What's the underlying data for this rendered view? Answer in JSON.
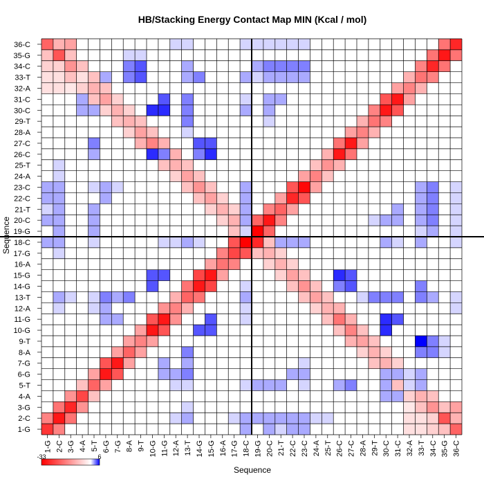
{
  "chart_data": {
    "type": "heatmap",
    "title": "HB/Stacking Energy Contact Map MIN (Kcal / mol)",
    "xlabel": "Sequence",
    "ylabel": "Sequence",
    "labels": [
      "1-G",
      "2-C",
      "3-G",
      "4-A",
      "5-T",
      "6-G",
      "7-G",
      "8-A",
      "9-T",
      "10-G",
      "11-G",
      "12-A",
      "13-T",
      "14-G",
      "15-G",
      "16-A",
      "17-G",
      "18-C",
      "19-G",
      "20-C",
      "21-T",
      "22-C",
      "23-C",
      "24-A",
      "25-T",
      "26-C",
      "27-C",
      "28-A",
      "29-T",
      "30-C",
      "31-C",
      "32-A",
      "33-T",
      "34-C",
      "35-G",
      "36-C"
    ],
    "x_tick_labels": [
      "1-G",
      "2-C",
      "3-G",
      "4-A",
      "5-T",
      "6-G",
      "7-G",
      "8-A",
      "9-T",
      "10-G",
      "11-G",
      "12-A",
      "13-T",
      "14-G",
      "15-G",
      "16-A",
      "17-G",
      "18-C",
      "19-G",
      "20-C",
      "21-T",
      "22-C",
      "23-C",
      "24-A",
      "25-T",
      "26-C",
      "27-C",
      "28-A",
      "29-T",
      "30-C",
      "31-C",
      "32-A",
      "33-T",
      "34-C",
      "35-G",
      "36-C"
    ],
    "y_tick_labels": [
      "36-C",
      "35-G",
      "34-C",
      "33-T",
      "32-A",
      "31-C",
      "30-C",
      "29-T",
      "28-A",
      "27-C",
      "26-C",
      "25-T",
      "24-A",
      "23-C",
      "22-C",
      "21-T",
      "20-C",
      "19-G",
      "18-C",
      "17-G",
      "16-A",
      "15-G",
      "14-G",
      "13-T",
      "12-A",
      "11-G",
      "10-G",
      "9-T",
      "8-A",
      "7-G",
      "6-G",
      "5-T",
      "4-A",
      "3-G",
      "2-C",
      "1-G"
    ],
    "colorbar": {
      "min_label": "-33",
      "max_label": "6",
      "min": -33,
      "max": 6
    },
    "colors": {
      "negative": "#ff0000",
      "zero": "#ffffff",
      "positive": "#0000ff",
      "grid": "#000000"
    },
    "divider_after_index": 18,
    "grid": true,
    "cells": [
      [
        1,
        1,
        -26
      ],
      [
        2,
        2,
        -30
      ],
      [
        3,
        3,
        -28
      ],
      [
        4,
        4,
        -24
      ],
      [
        5,
        5,
        -20
      ],
      [
        6,
        6,
        -30
      ],
      [
        7,
        7,
        -30
      ],
      [
        8,
        8,
        -20
      ],
      [
        9,
        9,
        -16
      ],
      [
        10,
        10,
        -30
      ],
      [
        11,
        11,
        -30
      ],
      [
        12,
        12,
        -16
      ],
      [
        13,
        13,
        -20
      ],
      [
        14,
        14,
        -30
      ],
      [
        15,
        15,
        -30
      ],
      [
        16,
        16,
        -18
      ],
      [
        17,
        17,
        -24
      ],
      [
        18,
        18,
        -33
      ],
      [
        19,
        19,
        -33
      ],
      [
        20,
        20,
        -30
      ],
      [
        21,
        21,
        -20
      ],
      [
        22,
        22,
        -28
      ],
      [
        23,
        23,
        -32
      ],
      [
        24,
        24,
        -16
      ],
      [
        25,
        25,
        -14
      ],
      [
        26,
        26,
        -30
      ],
      [
        27,
        27,
        -30
      ],
      [
        28,
        28,
        -16
      ],
      [
        29,
        29,
        -18
      ],
      [
        30,
        30,
        -30
      ],
      [
        31,
        31,
        -30
      ],
      [
        32,
        32,
        -16
      ],
      [
        33,
        33,
        -18
      ],
      [
        34,
        34,
        -28
      ],
      [
        35,
        35,
        -30
      ],
      [
        36,
        36,
        -28
      ],
      [
        1,
        2,
        -16
      ],
      [
        2,
        3,
        -18
      ],
      [
        3,
        4,
        -14
      ],
      [
        4,
        5,
        -8
      ],
      [
        5,
        6,
        -12
      ],
      [
        6,
        7,
        -22
      ],
      [
        7,
        8,
        -12
      ],
      [
        8,
        9,
        -12
      ],
      [
        9,
        10,
        -12
      ],
      [
        10,
        11,
        -22
      ],
      [
        11,
        12,
        -14
      ],
      [
        12,
        13,
        -10
      ],
      [
        13,
        14,
        -18
      ],
      [
        14,
        15,
        -24
      ],
      [
        15,
        16,
        -12
      ],
      [
        16,
        17,
        -16
      ],
      [
        17,
        18,
        -22
      ],
      [
        18,
        19,
        -28
      ],
      [
        19,
        20,
        -20
      ],
      [
        20,
        21,
        -16
      ],
      [
        21,
        22,
        -12
      ],
      [
        22,
        23,
        -22
      ],
      [
        23,
        24,
        -12
      ],
      [
        24,
        25,
        -8
      ],
      [
        25,
        26,
        -10
      ],
      [
        26,
        27,
        -18
      ],
      [
        27,
        28,
        -12
      ],
      [
        28,
        29,
        -10
      ],
      [
        29,
        30,
        -16
      ],
      [
        30,
        31,
        -22
      ],
      [
        31,
        32,
        -12
      ],
      [
        32,
        33,
        -10
      ],
      [
        33,
        34,
        -16
      ],
      [
        34,
        35,
        -18
      ],
      [
        35,
        36,
        -18
      ],
      [
        1,
        36,
        -20
      ],
      [
        2,
        35,
        -22
      ],
      [
        3,
        34,
        -14
      ],
      [
        4,
        33,
        -10
      ],
      [
        5,
        32,
        -10
      ],
      [
        6,
        31,
        -12
      ],
      [
        7,
        30,
        -10
      ],
      [
        8,
        29,
        -10
      ],
      [
        9,
        28,
        -12
      ],
      [
        10,
        27,
        -16
      ],
      [
        11,
        26,
        -18
      ],
      [
        12,
        25,
        -10
      ],
      [
        13,
        24,
        -12
      ],
      [
        14,
        23,
        -14
      ],
      [
        15,
        22,
        -12
      ],
      [
        16,
        21,
        -10
      ],
      [
        17,
        20,
        -10
      ],
      [
        18,
        19,
        -12
      ],
      [
        2,
        36,
        -10
      ],
      [
        3,
        36,
        -12
      ],
      [
        1,
        35,
        -8
      ],
      [
        1,
        34,
        -6
      ],
      [
        3,
        35,
        -8
      ],
      [
        2,
        34,
        -6
      ],
      [
        4,
        34,
        -8
      ],
      [
        3,
        33,
        -8
      ],
      [
        5,
        33,
        -8
      ],
      [
        4,
        32,
        -6
      ],
      [
        6,
        32,
        -8
      ],
      [
        5,
        31,
        -8
      ],
      [
        7,
        31,
        -6
      ],
      [
        6,
        30,
        -6
      ],
      [
        8,
        30,
        -6
      ],
      [
        7,
        29,
        -8
      ],
      [
        9,
        29,
        -8
      ],
      [
        8,
        28,
        -6
      ],
      [
        10,
        28,
        -8
      ],
      [
        9,
        27,
        -10
      ],
      [
        11,
        27,
        -10
      ],
      [
        10,
        26,
        -8
      ],
      [
        12,
        26,
        -10
      ],
      [
        11,
        25,
        -8
      ],
      [
        13,
        25,
        -8
      ],
      [
        12,
        24,
        -6
      ],
      [
        14,
        24,
        -8
      ],
      [
        13,
        23,
        -8
      ],
      [
        15,
        23,
        -8
      ],
      [
        14,
        22,
        -8
      ],
      [
        16,
        22,
        -6
      ],
      [
        15,
        21,
        -6
      ],
      [
        17,
        21,
        -6
      ],
      [
        16,
        20,
        -6
      ],
      [
        18,
        20,
        -8
      ],
      [
        17,
        19,
        -8
      ],
      [
        9,
        33,
        4
      ],
      [
        9,
        34,
        4
      ],
      [
        10,
        30,
        5
      ],
      [
        11,
        31,
        4
      ],
      [
        11,
        30,
        5
      ],
      [
        26,
        15,
        5
      ],
      [
        27,
        15,
        4
      ],
      [
        27,
        14,
        4
      ],
      [
        26,
        14,
        3
      ],
      [
        10,
        26,
        5
      ],
      [
        11,
        26,
        3
      ],
      [
        15,
        10,
        4
      ],
      [
        14,
        10,
        4
      ],
      [
        15,
        11,
        4
      ],
      [
        33,
        13,
        3
      ],
      [
        33,
        14,
        3
      ],
      [
        33,
        9,
        6
      ],
      [
        33,
        8,
        3
      ],
      [
        34,
        9,
        3
      ],
      [
        34,
        8,
        3
      ],
      [
        33,
        6,
        2
      ],
      [
        33,
        5,
        2
      ],
      [
        30,
        6,
        2
      ],
      [
        30,
        5,
        2
      ],
      [
        30,
        4,
        2
      ],
      [
        31,
        6,
        2
      ],
      [
        31,
        4,
        2
      ],
      [
        32,
        6,
        1
      ],
      [
        32,
        5,
        1
      ],
      [
        35,
        9,
        1
      ],
      [
        35,
        8,
        1
      ],
      [
        6,
        13,
        3
      ],
      [
        7,
        13,
        2
      ],
      [
        8,
        13,
        3
      ],
      [
        6,
        11,
        2
      ],
      [
        6,
        12,
        2
      ],
      [
        7,
        11,
        2
      ],
      [
        23,
        1,
        2
      ],
      [
        23,
        2,
        2
      ],
      [
        22,
        2,
        2
      ],
      [
        22,
        1,
        2
      ],
      [
        21,
        1,
        1
      ],
      [
        20,
        1,
        2
      ],
      [
        20,
        2,
        2
      ],
      [
        18,
        1,
        2
      ],
      [
        18,
        2,
        2
      ],
      [
        17,
        2,
        1
      ],
      [
        13,
        2,
        2
      ],
      [
        13,
        3,
        1
      ],
      [
        23,
        6,
        2
      ],
      [
        22,
        6,
        2
      ],
      [
        20,
        5,
        2
      ],
      [
        21,
        5,
        2
      ],
      [
        23,
        7,
        1
      ],
      [
        20,
        34,
        3
      ],
      [
        20,
        33,
        2
      ],
      [
        21,
        33,
        2
      ],
      [
        21,
        34,
        3
      ],
      [
        22,
        33,
        2
      ],
      [
        22,
        34,
        3
      ],
      [
        23,
        33,
        2
      ],
      [
        23,
        34,
        3
      ],
      [
        19,
        33,
        1
      ],
      [
        19,
        34,
        2
      ],
      [
        20,
        31,
        2
      ],
      [
        20,
        30,
        2
      ],
      [
        20,
        29,
        1
      ],
      [
        21,
        31,
        2
      ],
      [
        23,
        36,
        1
      ],
      [
        22,
        36,
        1
      ],
      [
        21,
        36,
        1
      ],
      [
        20,
        36,
        1
      ],
      [
        19,
        36,
        1
      ],
      [
        18,
        36,
        1
      ],
      [
        13,
        36,
        1
      ],
      [
        12,
        36,
        1
      ],
      [
        18,
        33,
        2
      ],
      [
        18,
        31,
        1
      ],
      [
        18,
        30,
        2
      ],
      [
        18,
        20,
        2
      ],
      [
        18,
        21,
        2
      ],
      [
        18,
        22,
        2
      ],
      [
        18,
        23,
        2
      ],
      [
        18,
        19,
        1
      ],
      [
        18,
        13,
        2
      ],
      [
        18,
        14,
        1
      ],
      [
        18,
        12,
        1
      ],
      [
        18,
        11,
        1
      ],
      [
        13,
        29,
        3
      ],
      [
        13,
        30,
        3
      ],
      [
        13,
        31,
        3
      ],
      [
        13,
        33,
        2
      ],
      [
        13,
        34,
        2
      ],
      [
        13,
        28,
        1
      ],
      [
        5,
        20,
        2
      ],
      [
        5,
        21,
        2
      ],
      [
        5,
        23,
        1
      ],
      [
        5,
        26,
        2
      ],
      [
        5,
        27,
        3
      ],
      [
        5,
        19,
        2
      ],
      [
        5,
        18,
        1
      ],
      [
        5,
        13,
        1
      ],
      [
        5,
        12,
        1
      ],
      [
        2,
        13,
        2
      ],
      [
        2,
        18,
        2
      ],
      [
        2,
        19,
        2
      ],
      [
        2,
        20,
        2
      ],
      [
        2,
        21,
        2
      ],
      [
        2,
        22,
        2
      ],
      [
        2,
        23,
        2
      ],
      [
        2,
        24,
        1
      ],
      [
        2,
        25,
        1
      ],
      [
        2,
        12,
        1
      ],
      [
        1,
        33,
        -4
      ],
      [
        1,
        32,
        -4
      ],
      [
        2,
        33,
        -4
      ],
      [
        2,
        32,
        -4
      ],
      [
        3,
        32,
        -3
      ],
      [
        4,
        33,
        -4
      ]
    ]
  }
}
